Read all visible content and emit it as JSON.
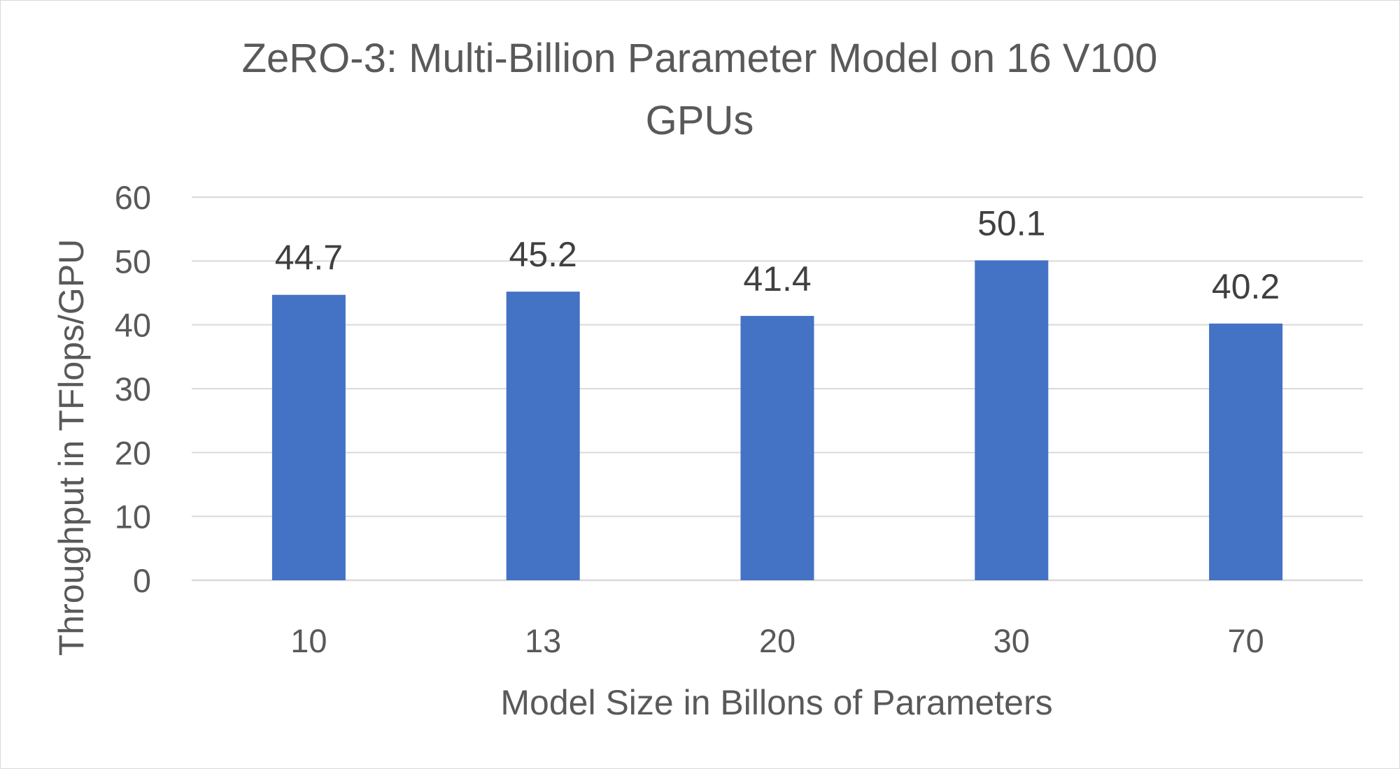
{
  "chart_data": {
    "type": "bar",
    "title_lines": [
      "ZeRO-3: Multi-Billion Parameter Model on 16 V100",
      "GPUs"
    ],
    "xlabel": "Model Size in Billons of Parameters",
    "ylabel": "Throughput in TFlops/GPU",
    "categories": [
      "10",
      "13",
      "20",
      "30",
      "70"
    ],
    "values": [
      44.7,
      45.2,
      41.4,
      50.1,
      40.2
    ],
    "data_labels": [
      "44.7",
      "45.2",
      "41.4",
      "50.1",
      "40.2"
    ],
    "ylim": [
      0,
      60
    ],
    "yticks": [
      0,
      10,
      20,
      30,
      40,
      50,
      60
    ],
    "ytick_labels": [
      "0",
      "10",
      "20",
      "30",
      "40",
      "50",
      "60"
    ],
    "grid": true,
    "legend": "none",
    "bar_color": "#4472c4"
  }
}
